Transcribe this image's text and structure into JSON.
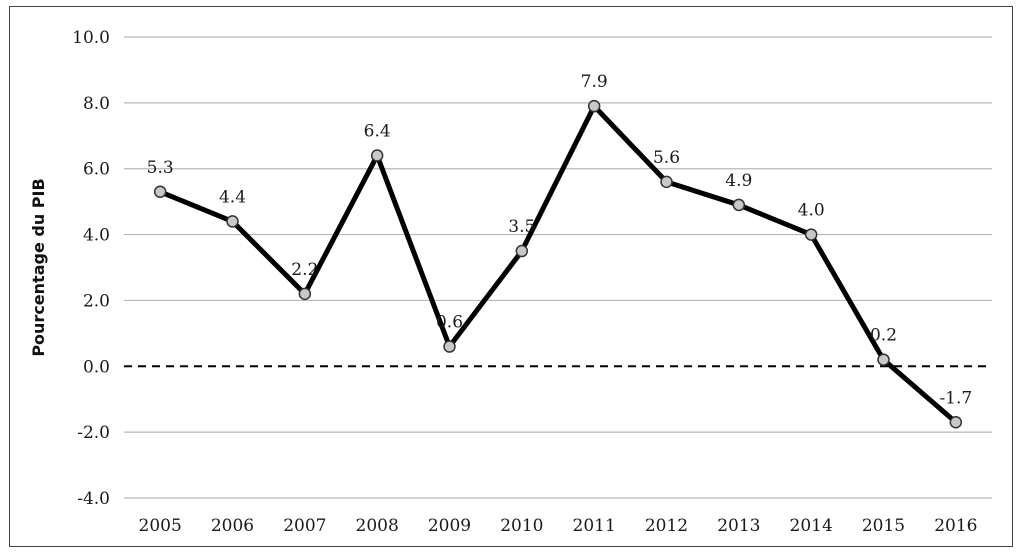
{
  "chart_data": {
    "type": "line",
    "title": "",
    "xlabel": "",
    "ylabel": "Pourcentage du PIB",
    "x": [
      "2005",
      "2006",
      "2007",
      "2008",
      "2009",
      "2010",
      "2011",
      "2012",
      "2013",
      "2014",
      "2015",
      "2016"
    ],
    "series": [
      {
        "values": [
          5.3,
          4.4,
          2.2,
          6.4,
          0.6,
          3.5,
          7.9,
          5.6,
          4.9,
          4.0,
          0.2,
          -1.7
        ],
        "labels": [
          "5.3",
          "4.4",
          "2.2",
          "6.4",
          "0.6",
          "3.5",
          "7.9",
          "5.6",
          "4.9",
          "4.0",
          "0.2",
          "-1.7"
        ]
      }
    ],
    "ylim": [
      -4.0,
      10.0
    ],
    "yticks": [
      -4.0,
      -2.0,
      0.0,
      2.0,
      4.0,
      6.0,
      8.0,
      10.0
    ],
    "ytick_labels": [
      "-4.0",
      "-2.0",
      "0.0",
      "2.0",
      "4.0",
      "6.0",
      "8.0",
      "10.0"
    ],
    "grid": true,
    "zero_line": "dashed",
    "line_color": "#000000",
    "marker_fill": "#c8c8c8",
    "grid_color": "#b8b8b8"
  }
}
